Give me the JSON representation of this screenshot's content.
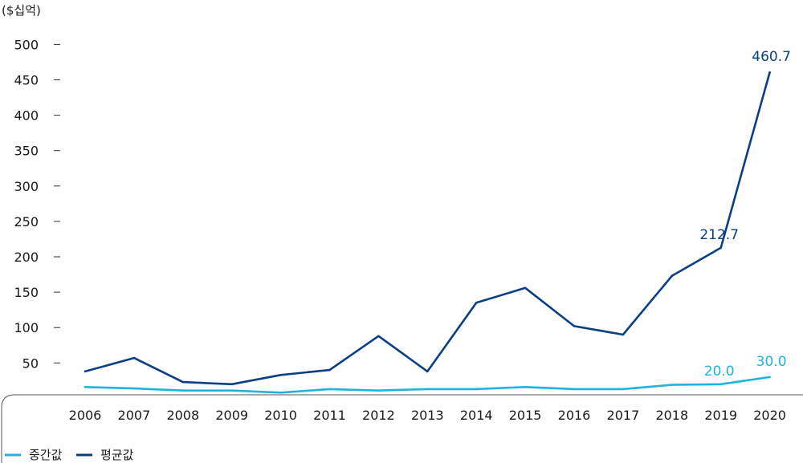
{
  "chart_data": {
    "type": "line",
    "unit_label": "($십억)",
    "x": [
      "2006",
      "2007",
      "2008",
      "2009",
      "2010",
      "2011",
      "2012",
      "2013",
      "2014",
      "2015",
      "2016",
      "2017",
      "2018",
      "2019",
      "2020"
    ],
    "ylim": [
      0,
      500
    ],
    "y_ticks": [
      "50",
      "100",
      "150",
      "200",
      "250",
      "300",
      "350",
      "400",
      "450",
      "500"
    ],
    "grid": false,
    "legend_position": "bottom-left",
    "series": [
      {
        "name": "중간값",
        "color": "#1fb3e0",
        "values": [
          16,
          14,
          11,
          11,
          8,
          13,
          11,
          13,
          13,
          16,
          13,
          13,
          19,
          20,
          30
        ],
        "point_labels": {
          "2019": "20.0",
          "2020": "30.0"
        }
      },
      {
        "name": "평균값",
        "color": "#0b3f85",
        "values": [
          38,
          57,
          23,
          20,
          33,
          40,
          88,
          38,
          135,
          156,
          102,
          90,
          173,
          212.7,
          460.7
        ],
        "point_labels": {
          "2019": "212.7",
          "2020": "460.7"
        }
      }
    ]
  }
}
